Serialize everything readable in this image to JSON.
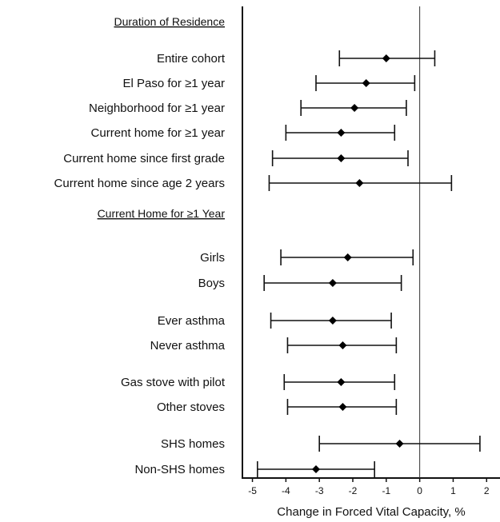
{
  "chart_data": {
    "type": "forest",
    "xlabel": "Change in Forced Vital Capacity, %",
    "xlim": [
      -5.3,
      2.4
    ],
    "xticks": [
      "-5",
      "-4",
      "-3",
      "-2",
      "-1",
      "0",
      "1",
      "2"
    ],
    "xtick_values": [
      -5,
      -4,
      -3,
      -2,
      -1,
      0,
      1,
      2
    ],
    "reference_line": 0,
    "sections": [
      {
        "heading": "Duration of Residence",
        "rows": [
          {
            "label": "Entire cohort",
            "estimate": -1.0,
            "lower": -2.4,
            "upper": 0.45
          },
          {
            "label": "El Paso for ≥1 year",
            "estimate": -1.6,
            "lower": -3.1,
            "upper": -0.15
          },
          {
            "label": "Neighborhood for ≥1 year",
            "estimate": -1.95,
            "lower": -3.55,
            "upper": -0.4
          },
          {
            "label": "Current home for ≥1 year",
            "estimate": -2.35,
            "lower": -4.0,
            "upper": -0.75
          },
          {
            "label": "Current home since first grade",
            "estimate": -2.35,
            "lower": -4.4,
            "upper": -0.35
          },
          {
            "label": "Current home since age 2 years",
            "estimate": -1.8,
            "lower": -4.5,
            "upper": 0.95
          }
        ]
      },
      {
        "heading": "Current Home for ≥1 Year",
        "rows": [
          {
            "label": "Girls",
            "estimate": -2.15,
            "lower": -4.15,
            "upper": -0.2
          },
          {
            "label": "Boys",
            "estimate": -2.6,
            "lower": -4.65,
            "upper": -0.55
          },
          {
            "label": "Ever asthma",
            "estimate": -2.6,
            "lower": -4.45,
            "upper": -0.85
          },
          {
            "label": "Never asthma",
            "estimate": -2.3,
            "lower": -3.95,
            "upper": -0.7
          },
          {
            "label": "Gas stove with pilot",
            "estimate": -2.35,
            "lower": -4.05,
            "upper": -0.75
          },
          {
            "label": "Other stoves",
            "estimate": -2.3,
            "lower": -3.95,
            "upper": -0.7
          },
          {
            "label": "SHS homes",
            "estimate": -0.6,
            "lower": -3.0,
            "upper": 1.8
          },
          {
            "label": "Non-SHS homes",
            "estimate": -3.1,
            "lower": -4.85,
            "upper": -1.35
          }
        ]
      }
    ]
  }
}
